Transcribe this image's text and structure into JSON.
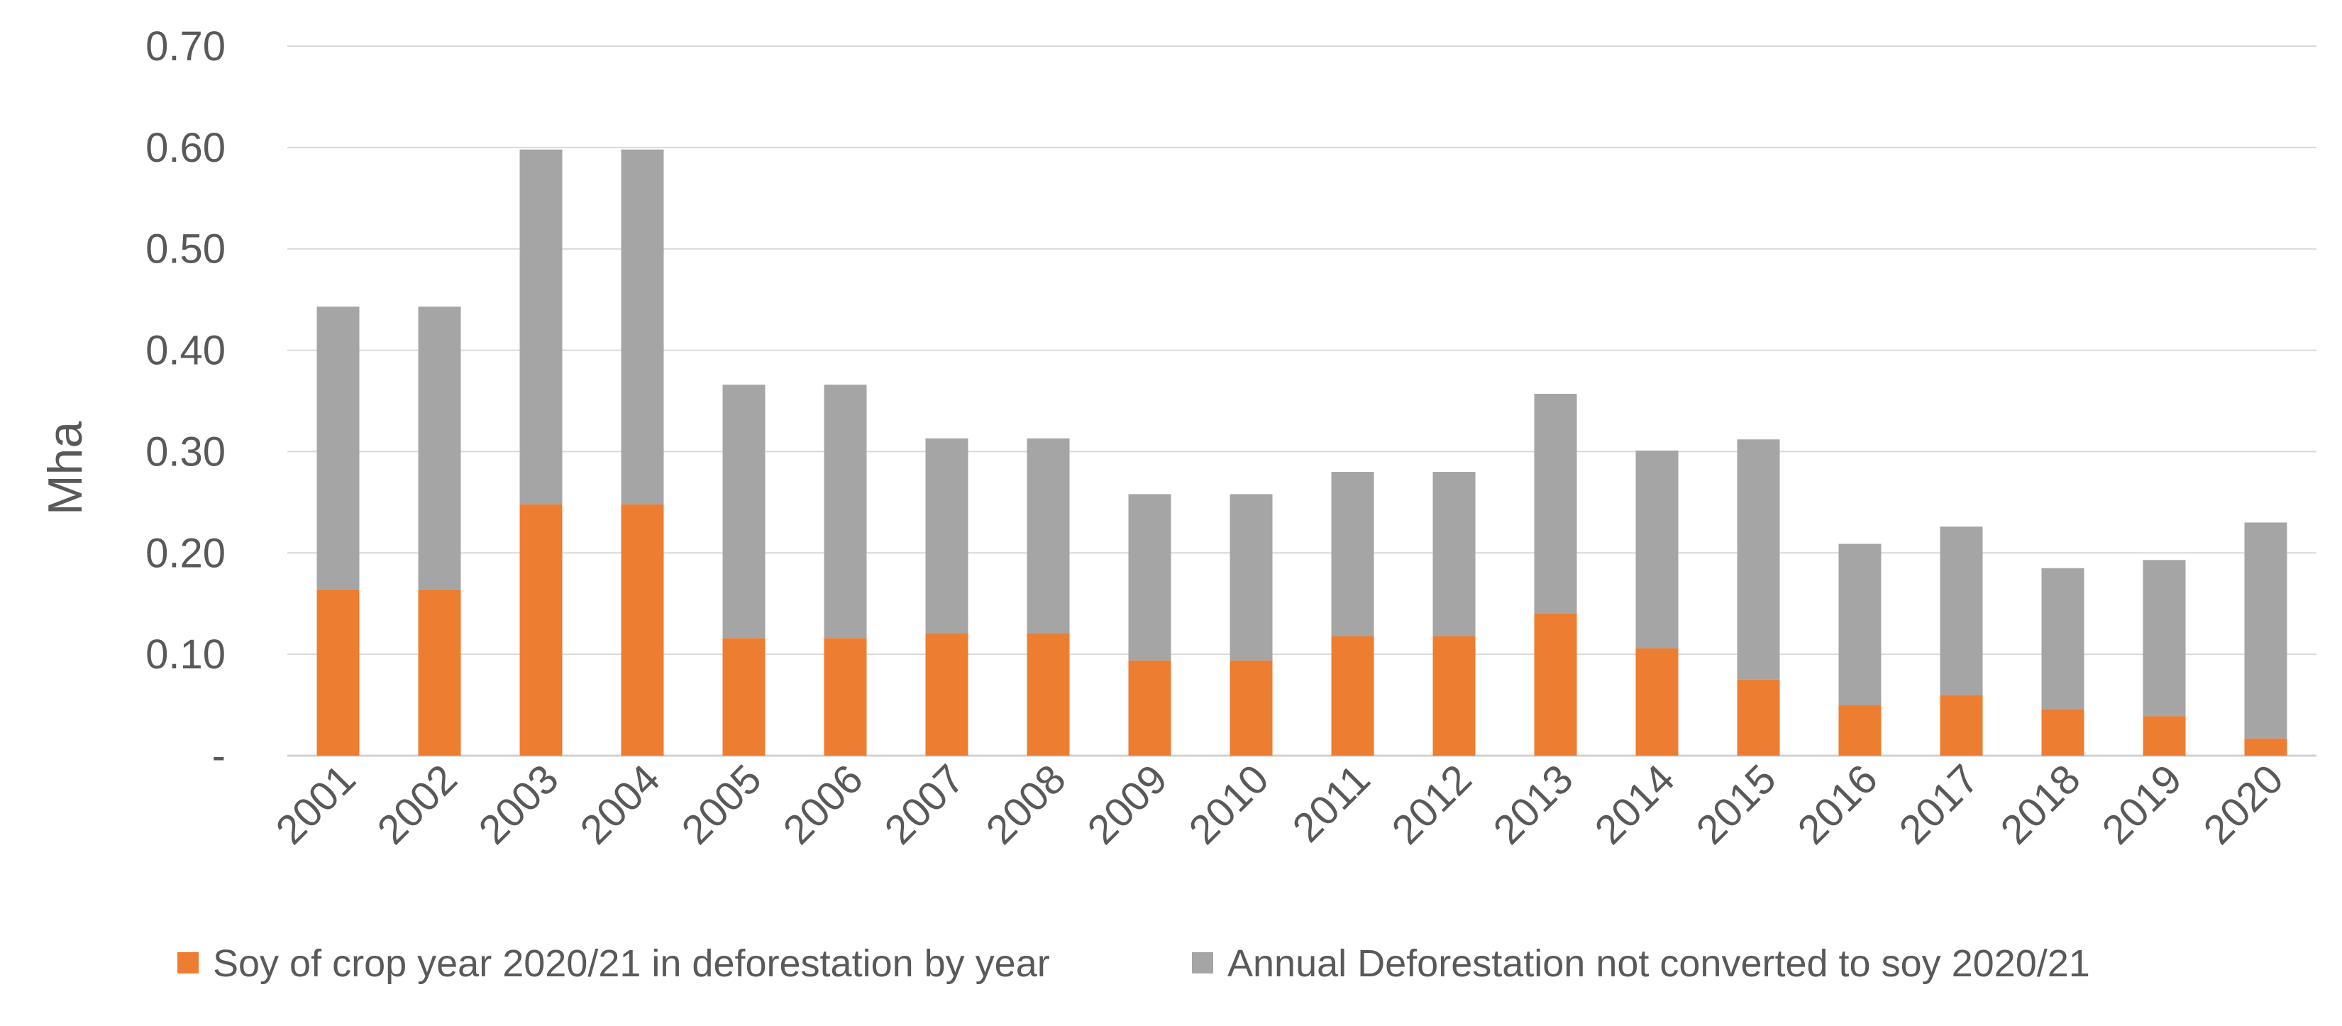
{
  "chart_data": {
    "type": "bar",
    "stacked": true,
    "title": "",
    "xlabel": "",
    "ylabel": "Mha",
    "ylim": [
      0,
      0.7
    ],
    "yticks": [
      0,
      0.1,
      0.2,
      0.3,
      0.4,
      0.5,
      0.6,
      0.7
    ],
    "ytick_labels": [
      "-",
      "0.10",
      "0.20",
      "0.30",
      "0.40",
      "0.50",
      "0.60",
      "0.70"
    ],
    "grid": true,
    "legend_position": "bottom",
    "categories": [
      "2001",
      "2002",
      "2003",
      "2004",
      "2005",
      "2006",
      "2007",
      "2008",
      "2009",
      "2010",
      "2011",
      "2012",
      "2013",
      "2014",
      "2015",
      "2016",
      "2017",
      "2018",
      "2019",
      "2020"
    ],
    "series": [
      {
        "name": "Soy of crop year 2020/21 in deforestation by year",
        "color": "#ed7d31",
        "values": [
          0.164,
          0.164,
          0.248,
          0.248,
          0.116,
          0.116,
          0.121,
          0.121,
          0.094,
          0.094,
          0.118,
          0.118,
          0.14,
          0.106,
          0.075,
          0.05,
          0.06,
          0.046,
          0.039,
          0.017
        ]
      },
      {
        "name": "Annual Deforestation not converted to soy 2020/21",
        "color": "#a5a5a5",
        "values": [
          0.279,
          0.279,
          0.35,
          0.35,
          0.25,
          0.25,
          0.192,
          0.192,
          0.164,
          0.164,
          0.162,
          0.162,
          0.217,
          0.195,
          0.237,
          0.159,
          0.166,
          0.139,
          0.154,
          0.213
        ]
      }
    ]
  }
}
